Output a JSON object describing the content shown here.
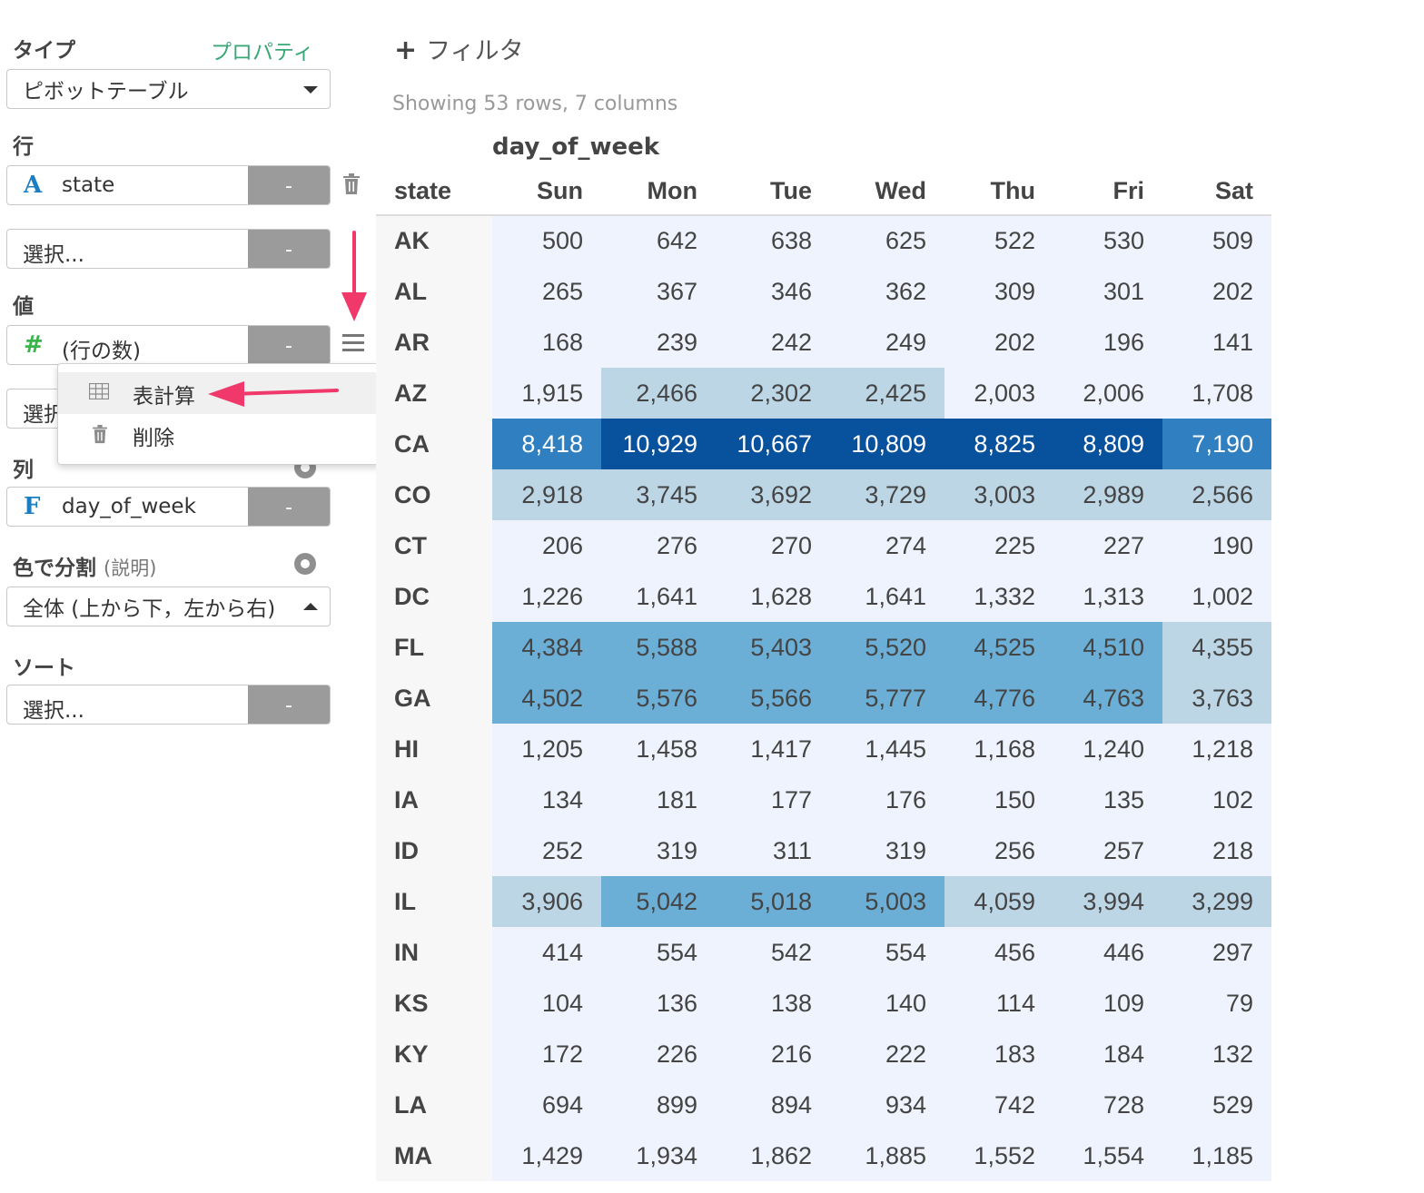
{
  "sidebar": {
    "type_label": "タイプ",
    "properties_link": "プロパティ",
    "type_value": "ピボットテーブル",
    "rows_label": "行",
    "row_field": {
      "icon_glyph": "A",
      "icon_color": "#1a7ec2",
      "name": "state",
      "minus": "-"
    },
    "row_select": {
      "text": "選択...",
      "minus": "-"
    },
    "values_label": "値",
    "value_field": {
      "icon_glyph": "#",
      "icon_color": "#3ab54a",
      "name": "(行の数)",
      "minus": "-"
    },
    "value_select": {
      "text": "選択"
    },
    "columns_label": "列",
    "column_field": {
      "icon_glyph": "F",
      "icon_color": "#1a7ec2",
      "name": "day_of_week",
      "minus": "-"
    },
    "color_label": "色で分割",
    "color_help": "(説明)",
    "color_value": "全体 (上から下，左から右)",
    "sort_label": "ソート",
    "sort_select": {
      "text": "選択...",
      "minus": "-"
    }
  },
  "menu": {
    "items": [
      {
        "label": "表計算",
        "icon": "table-icon"
      },
      {
        "label": "削除",
        "icon": "trash-icon"
      }
    ]
  },
  "main": {
    "filter_label": "フィルタ",
    "showing": "Showing 53 rows, 7 columns",
    "column_dimension": "day_of_week",
    "row_header": "state"
  },
  "table": {
    "columns": [
      "Sun",
      "Mon",
      "Tue",
      "Wed",
      "Thu",
      "Fri",
      "Sat"
    ],
    "rows": [
      {
        "state": "AK",
        "values": [
          "500",
          "642",
          "638",
          "625",
          "522",
          "530",
          "509"
        ],
        "levels": [
          1,
          1,
          1,
          1,
          1,
          1,
          1
        ]
      },
      {
        "state": "AL",
        "values": [
          "265",
          "367",
          "346",
          "362",
          "309",
          "301",
          "202"
        ],
        "levels": [
          1,
          1,
          1,
          1,
          1,
          1,
          1
        ]
      },
      {
        "state": "AR",
        "values": [
          "168",
          "239",
          "242",
          "249",
          "202",
          "196",
          "141"
        ],
        "levels": [
          1,
          1,
          1,
          1,
          1,
          1,
          1
        ]
      },
      {
        "state": "AZ",
        "values": [
          "1,915",
          "2,466",
          "2,302",
          "2,425",
          "2,003",
          "2,006",
          "1,708"
        ],
        "levels": [
          1,
          2,
          2,
          2,
          1,
          1,
          1
        ]
      },
      {
        "state": "CA",
        "values": [
          "8,418",
          "10,929",
          "10,667",
          "10,809",
          "8,825",
          "8,809",
          "7,190"
        ],
        "levels": [
          4,
          5,
          5,
          5,
          5,
          5,
          4
        ]
      },
      {
        "state": "CO",
        "values": [
          "2,918",
          "3,745",
          "3,692",
          "3,729",
          "3,003",
          "2,989",
          "2,566"
        ],
        "levels": [
          2,
          2,
          2,
          2,
          2,
          2,
          2
        ]
      },
      {
        "state": "CT",
        "values": [
          "206",
          "276",
          "270",
          "274",
          "225",
          "227",
          "190"
        ],
        "levels": [
          1,
          1,
          1,
          1,
          1,
          1,
          1
        ]
      },
      {
        "state": "DC",
        "values": [
          "1,226",
          "1,641",
          "1,628",
          "1,641",
          "1,332",
          "1,313",
          "1,002"
        ],
        "levels": [
          1,
          1,
          1,
          1,
          1,
          1,
          1
        ]
      },
      {
        "state": "FL",
        "values": [
          "4,384",
          "5,588",
          "5,403",
          "5,520",
          "4,525",
          "4,510",
          "4,355"
        ],
        "levels": [
          3,
          3,
          3,
          3,
          3,
          3,
          2
        ]
      },
      {
        "state": "GA",
        "values": [
          "4,502",
          "5,576",
          "5,566",
          "5,777",
          "4,776",
          "4,763",
          "3,763"
        ],
        "levels": [
          3,
          3,
          3,
          3,
          3,
          3,
          2
        ]
      },
      {
        "state": "HI",
        "values": [
          "1,205",
          "1,458",
          "1,417",
          "1,445",
          "1,168",
          "1,240",
          "1,218"
        ],
        "levels": [
          1,
          1,
          1,
          1,
          1,
          1,
          1
        ]
      },
      {
        "state": "IA",
        "values": [
          "134",
          "181",
          "177",
          "176",
          "150",
          "135",
          "102"
        ],
        "levels": [
          1,
          1,
          1,
          1,
          1,
          1,
          1
        ]
      },
      {
        "state": "ID",
        "values": [
          "252",
          "319",
          "311",
          "319",
          "256",
          "257",
          "218"
        ],
        "levels": [
          1,
          1,
          1,
          1,
          1,
          1,
          1
        ]
      },
      {
        "state": "IL",
        "values": [
          "3,906",
          "5,042",
          "5,018",
          "5,003",
          "4,059",
          "3,994",
          "3,299"
        ],
        "levels": [
          2,
          3,
          3,
          3,
          2,
          2,
          2
        ]
      },
      {
        "state": "IN",
        "values": [
          "414",
          "554",
          "542",
          "554",
          "456",
          "446",
          "297"
        ],
        "levels": [
          1,
          1,
          1,
          1,
          1,
          1,
          1
        ]
      },
      {
        "state": "KS",
        "values": [
          "104",
          "136",
          "138",
          "140",
          "114",
          "109",
          "79"
        ],
        "levels": [
          1,
          1,
          1,
          1,
          1,
          1,
          1
        ]
      },
      {
        "state": "KY",
        "values": [
          "172",
          "226",
          "216",
          "222",
          "183",
          "184",
          "132"
        ],
        "levels": [
          1,
          1,
          1,
          1,
          1,
          1,
          1
        ]
      },
      {
        "state": "LA",
        "values": [
          "694",
          "899",
          "894",
          "934",
          "742",
          "728",
          "529"
        ],
        "levels": [
          1,
          1,
          1,
          1,
          1,
          1,
          1
        ]
      },
      {
        "state": "MA",
        "values": [
          "1,429",
          "1,934",
          "1,862",
          "1,885",
          "1,552",
          "1,554",
          "1,185"
        ],
        "levels": [
          1,
          1,
          1,
          1,
          1,
          1,
          1
        ]
      }
    ]
  },
  "colors": {
    "accent_link": "#3aa876",
    "annotation_arrow": "#f0386b",
    "scale": [
      "#eef3fd",
      "#bcd6e6",
      "#6baed6",
      "#2f7fc1",
      "#08519c"
    ]
  }
}
